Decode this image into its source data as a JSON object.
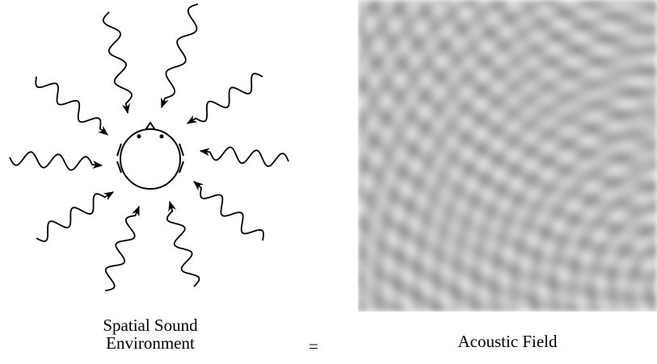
{
  "left_caption": {
    "lines": [
      "Spatial Sound",
      "Environment"
    ]
  },
  "equals": "=",
  "right_caption": "Acoustic Field"
}
